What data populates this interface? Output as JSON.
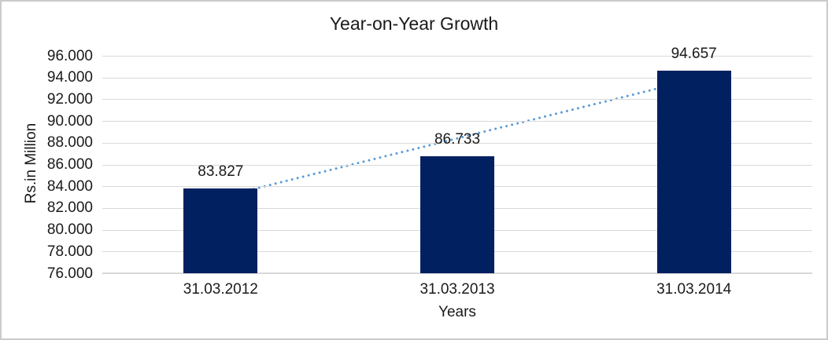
{
  "chart_data": {
    "type": "bar",
    "title": "Year-on-Year Growth",
    "xlabel": "Years",
    "ylabel": "Rs.in Million",
    "categories": [
      "31.03.2012",
      "31.03.2013",
      "31.03.2014"
    ],
    "values": [
      83827,
      86733,
      94657
    ],
    "data_labels": [
      "83.827",
      "86.733",
      "94.657"
    ],
    "ylim": [
      76000,
      96000
    ],
    "ytick_step": 2000,
    "ytick_labels": [
      "96.000",
      "94.000",
      "92.000",
      "90.000",
      "88.000",
      "86.000",
      "84.000",
      "82.000",
      "80.000",
      "78.000",
      "76.000"
    ],
    "grid": true,
    "legend": false,
    "trendline": {
      "type": "linear",
      "style": "dotted",
      "color": "#5B9BD5"
    },
    "colors": {
      "bar": "#002060",
      "gridline": "#d9d9d9",
      "text": "#1a1a1a",
      "background": "#ffffff",
      "border": "#cbcbcb"
    }
  }
}
